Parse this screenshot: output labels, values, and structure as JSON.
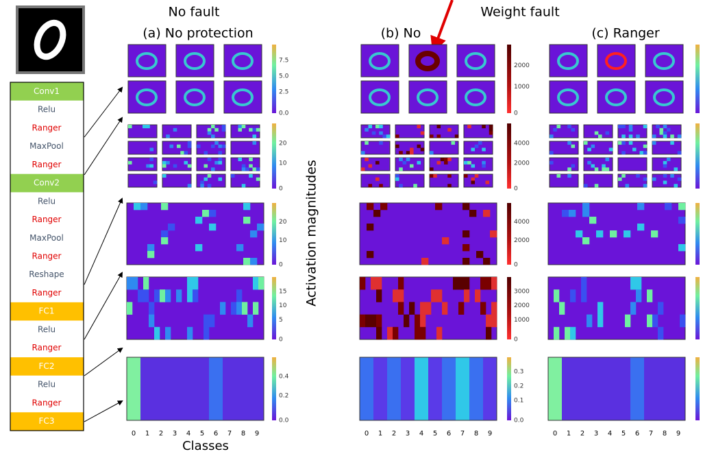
{
  "headings": {
    "no_fault": "No fault",
    "weight_fault": "Weight fault",
    "a": "(a) No protection",
    "b": "(b) No",
    "c": "(c) Ranger"
  },
  "layers": [
    "Conv1",
    "Relu",
    "Ranger",
    "MaxPool",
    "Ranger",
    "Conv2",
    "Relu",
    "Ranger",
    "MaxPool",
    "Ranger",
    "Reshape",
    "Ranger",
    "FC1",
    "Relu",
    "Ranger",
    "FC2",
    "Relu",
    "Ranger",
    "FC3"
  ],
  "y_label": "Activation magnitudes",
  "x_label": "Classes",
  "class_ticks": [
    "0",
    "1",
    "2",
    "3",
    "4",
    "5",
    "6",
    "7",
    "8",
    "9"
  ],
  "colorbars": {
    "a": [
      [
        "7.5",
        "5.0",
        "2.5",
        "0.0"
      ],
      [
        "20",
        "10",
        "0"
      ],
      [
        "20",
        "10",
        "0"
      ],
      [
        "15",
        "10",
        "5",
        "0"
      ],
      [
        "0.4",
        "0.2",
        "0.0"
      ]
    ],
    "b": [
      [
        "2000",
        "1000",
        "0"
      ],
      [
        "4000",
        "2000",
        "0"
      ],
      [
        "4000",
        "2000",
        "0"
      ],
      [
        "3000",
        "2000",
        "1000",
        "0"
      ],
      [
        "0.3",
        "0.2",
        "0.1",
        "0.0"
      ]
    ]
  }
}
